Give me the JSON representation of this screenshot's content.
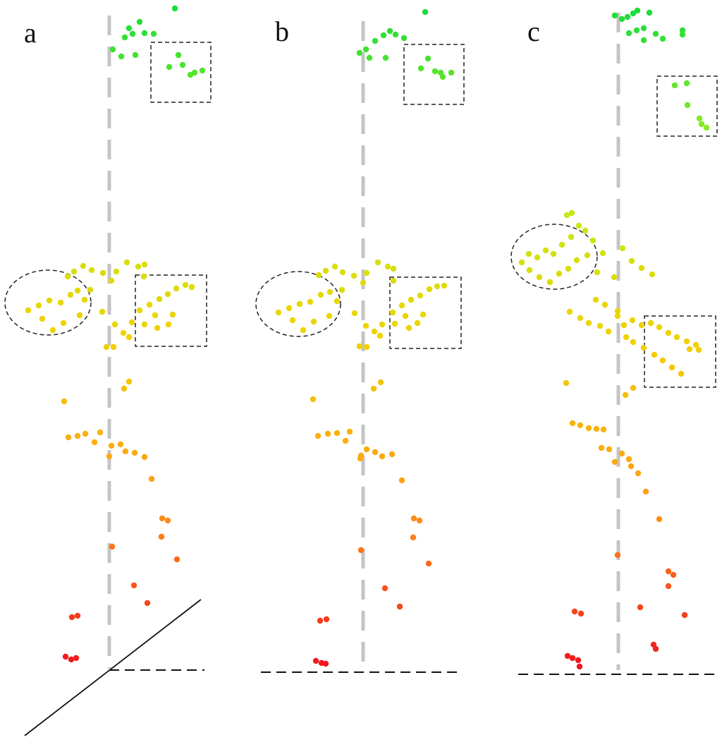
{
  "panels": [
    {
      "label": "a",
      "color_scale": [
        "#18dd3a",
        "#b7ef1a",
        "#f2d100",
        "#ff9a18",
        "#f2151f"
      ],
      "points": [
        [
          248,
          12
        ],
        [
          160,
          70
        ],
        [
          172,
          80
        ],
        [
          183,
          40
        ],
        [
          198,
          31
        ],
        [
          205,
          47
        ],
        [
          188,
          48
        ],
        [
          192,
          78
        ],
        [
          218,
          48
        ],
        [
          177,
          53
        ],
        [
          253,
          78
        ],
        [
          240,
          95
        ],
        [
          259,
          92
        ],
        [
          276,
          103
        ],
        [
          287,
          100
        ],
        [
          270,
          106
        ],
        [
          40,
          440
        ],
        [
          55,
          433
        ],
        [
          70,
          426
        ],
        [
          86,
          429
        ],
        [
          100,
          418
        ],
        [
          110,
          412
        ],
        [
          120,
          425
        ],
        [
          128,
          411
        ],
        [
          96,
          392
        ],
        [
          105,
          385
        ],
        [
          118,
          377
        ],
        [
          130,
          383
        ],
        [
          146,
          387
        ],
        [
          158,
          398
        ],
        [
          165,
          385
        ],
        [
          180,
          372
        ],
        [
          196,
          378
        ],
        [
          205,
          375
        ],
        [
          204,
          392
        ],
        [
          145,
          442
        ],
        [
          163,
          460
        ],
        [
          175,
          472
        ],
        [
          187,
          457
        ],
        [
          151,
          492
        ],
        [
          161,
          492
        ],
        [
          183,
          478
        ],
        [
          198,
          440
        ],
        [
          212,
          432
        ],
        [
          226,
          424
        ],
        [
          238,
          417
        ],
        [
          250,
          409
        ],
        [
          263,
          404
        ],
        [
          272,
          407
        ],
        [
          223,
          465
        ],
        [
          239,
          460
        ],
        [
          245,
          446
        ],
        [
          220,
          447
        ],
        [
          205,
          460
        ],
        [
          60,
          452
        ],
        [
          75,
          468
        ],
        [
          90,
          458
        ],
        [
          113,
          447
        ],
        [
          176,
          551
        ],
        [
          183,
          541
        ],
        [
          91,
          569
        ],
        [
          97,
          620
        ],
        [
          110,
          618
        ],
        [
          121,
          615
        ],
        [
          134,
          627
        ],
        [
          142,
          613
        ],
        [
          158,
          632
        ],
        [
          171,
          630
        ],
        [
          178,
          640
        ],
        [
          155,
          647
        ],
        [
          191,
          642
        ],
        [
          205,
          648
        ],
        [
          215,
          679
        ],
        [
          230,
          735
        ],
        [
          238,
          738
        ],
        [
          229,
          761
        ],
        [
          251,
          793
        ],
        [
          159,
          775
        ],
        [
          190,
          830
        ],
        [
          209,
          855
        ],
        [
          102,
          875
        ],
        [
          110,
          873
        ],
        [
          93,
          931
        ],
        [
          101,
          935
        ],
        [
          108,
          933
        ]
      ]
    },
    {
      "label": "b",
      "color_scale": [
        "#18dd3a",
        "#b7ef1a",
        "#f2d100",
        "#ff9a18",
        "#f2151f"
      ],
      "points": [
        [
          603,
          17
        ],
        [
          510,
          75
        ],
        [
          519,
          70
        ],
        [
          532,
          58
        ],
        [
          544,
          50
        ],
        [
          553,
          44
        ],
        [
          561,
          49
        ],
        [
          573,
          54
        ],
        [
          547,
          82
        ],
        [
          524,
          82
        ],
        [
          607,
          83
        ],
        [
          597,
          97
        ],
        [
          617,
          101
        ],
        [
          628,
          109
        ],
        [
          640,
          103
        ],
        [
          625,
          103
        ],
        [
          395,
          443
        ],
        [
          410,
          437
        ],
        [
          425,
          431
        ],
        [
          440,
          428
        ],
        [
          455,
          418
        ],
        [
          468,
          414
        ],
        [
          478,
          427
        ],
        [
          485,
          411
        ],
        [
          452,
          390
        ],
        [
          462,
          384
        ],
        [
          475,
          378
        ],
        [
          486,
          386
        ],
        [
          502,
          391
        ],
        [
          515,
          401
        ],
        [
          520,
          387
        ],
        [
          536,
          372
        ],
        [
          550,
          378
        ],
        [
          558,
          381
        ],
        [
          558,
          398
        ],
        [
          503,
          444
        ],
        [
          519,
          462
        ],
        [
          531,
          470
        ],
        [
          542,
          460
        ],
        [
          510,
          491
        ],
        [
          520,
          492
        ],
        [
          539,
          476
        ],
        [
          557,
          443
        ],
        [
          570,
          433
        ],
        [
          583,
          425
        ],
        [
          596,
          419
        ],
        [
          609,
          410
        ],
        [
          620,
          406
        ],
        [
          630,
          405
        ],
        [
          580,
          465
        ],
        [
          592,
          458
        ],
        [
          600,
          446
        ],
        [
          575,
          448
        ],
        [
          560,
          459
        ],
        [
          415,
          454
        ],
        [
          430,
          468
        ],
        [
          445,
          456
        ],
        [
          467,
          448
        ],
        [
          530,
          551
        ],
        [
          540,
          542
        ],
        [
          444,
          566
        ],
        [
          451,
          618
        ],
        [
          465,
          615
        ],
        [
          478,
          614
        ],
        [
          490,
          625
        ],
        [
          496,
          612
        ],
        [
          512,
          646
        ],
        [
          520,
          637
        ],
        [
          532,
          641
        ],
        [
          511,
          650
        ],
        [
          542,
          647
        ],
        [
          556,
          644
        ],
        [
          570,
          681
        ],
        [
          587,
          735
        ],
        [
          595,
          738
        ],
        [
          586,
          762
        ],
        [
          608,
          799
        ],
        [
          512,
          780
        ],
        [
          546,
          834
        ],
        [
          567,
          860
        ],
        [
          454,
          880
        ],
        [
          463,
          878
        ],
        [
          448,
          937
        ],
        [
          456,
          940
        ],
        [
          462,
          941
        ]
      ]
    },
    {
      "label": "c",
      "color_scale": [
        "#18dd3a",
        "#b7ef1a",
        "#f2d100",
        "#ff9a18",
        "#f2151f"
      ],
      "points": [
        [
          872,
          22
        ],
        [
          882,
          27
        ],
        [
          890,
          24
        ],
        [
          898,
          19
        ],
        [
          904,
          15
        ],
        [
          921,
          18
        ],
        [
          913,
          40
        ],
        [
          903,
          43
        ],
        [
          892,
          47
        ],
        [
          930,
          48
        ],
        [
          913,
          57
        ],
        [
          940,
          55
        ],
        [
          968,
          43
        ],
        [
          968,
          49
        ],
        [
          957,
          121
        ],
        [
          974,
          118
        ],
        [
          975,
          149
        ],
        [
          992,
          168
        ],
        [
          995,
          176
        ],
        [
          1002,
          181
        ],
        [
          740,
          372
        ],
        [
          750,
          360
        ],
        [
          762,
          365
        ],
        [
          774,
          355
        ],
        [
          785,
          360
        ],
        [
          797,
          347
        ],
        [
          810,
          336
        ],
        [
          821,
          320
        ],
        [
          830,
          327
        ],
        [
          841,
          341
        ],
        [
          804,
          305
        ],
        [
          811,
          302
        ],
        [
          751,
          383
        ],
        [
          765,
          393
        ],
        [
          780,
          400
        ],
        [
          793,
          388
        ],
        [
          806,
          381
        ],
        [
          818,
          369
        ],
        [
          833,
          362
        ],
        [
          855,
          359
        ],
        [
          883,
          352
        ],
        [
          896,
          370
        ],
        [
          910,
          380
        ],
        [
          925,
          389
        ],
        [
          847,
          386
        ],
        [
          871,
          393
        ],
        [
          845,
          425
        ],
        [
          858,
          432
        ],
        [
          876,
          441
        ],
        [
          808,
          442
        ],
        [
          823,
          451
        ],
        [
          835,
          458
        ],
        [
          851,
          462
        ],
        [
          863,
          470
        ],
        [
          876,
          448
        ],
        [
          885,
          461
        ],
        [
          897,
          454
        ],
        [
          910,
          461
        ],
        [
          923,
          458
        ],
        [
          935,
          464
        ],
        [
          948,
          472
        ],
        [
          960,
          478
        ],
        [
          974,
          484
        ],
        [
          987,
          489
        ],
        [
          991,
          496
        ],
        [
          888,
          478
        ],
        [
          898,
          485
        ],
        [
          913,
          493
        ],
        [
          928,
          503
        ],
        [
          940,
          511
        ],
        [
          953,
          521
        ],
        [
          966,
          530
        ],
        [
          978,
          495
        ],
        [
          887,
          560
        ],
        [
          898,
          550
        ],
        [
          803,
          543
        ],
        [
          812,
          600
        ],
        [
          823,
          603
        ],
        [
          835,
          607
        ],
        [
          846,
          608
        ],
        [
          856,
          609
        ],
        [
          853,
          635
        ],
        [
          864,
          637
        ],
        [
          872,
          655
        ],
        [
          882,
          643
        ],
        [
          892,
          651
        ],
        [
          895,
          661
        ],
        [
          905,
          671
        ],
        [
          916,
          697
        ],
        [
          935,
          736
        ],
        [
          948,
          810
        ],
        [
          955,
          815
        ],
        [
          948,
          831
        ],
        [
          876,
          787
        ],
        [
          908,
          861
        ],
        [
          971,
          872
        ],
        [
          815,
          867
        ],
        [
          824,
          870
        ],
        [
          927,
          914
        ],
        [
          930,
          920
        ],
        [
          805,
          930
        ],
        [
          812,
          933
        ],
        [
          820,
          936
        ],
        [
          822,
          945
        ]
      ]
    }
  ]
}
